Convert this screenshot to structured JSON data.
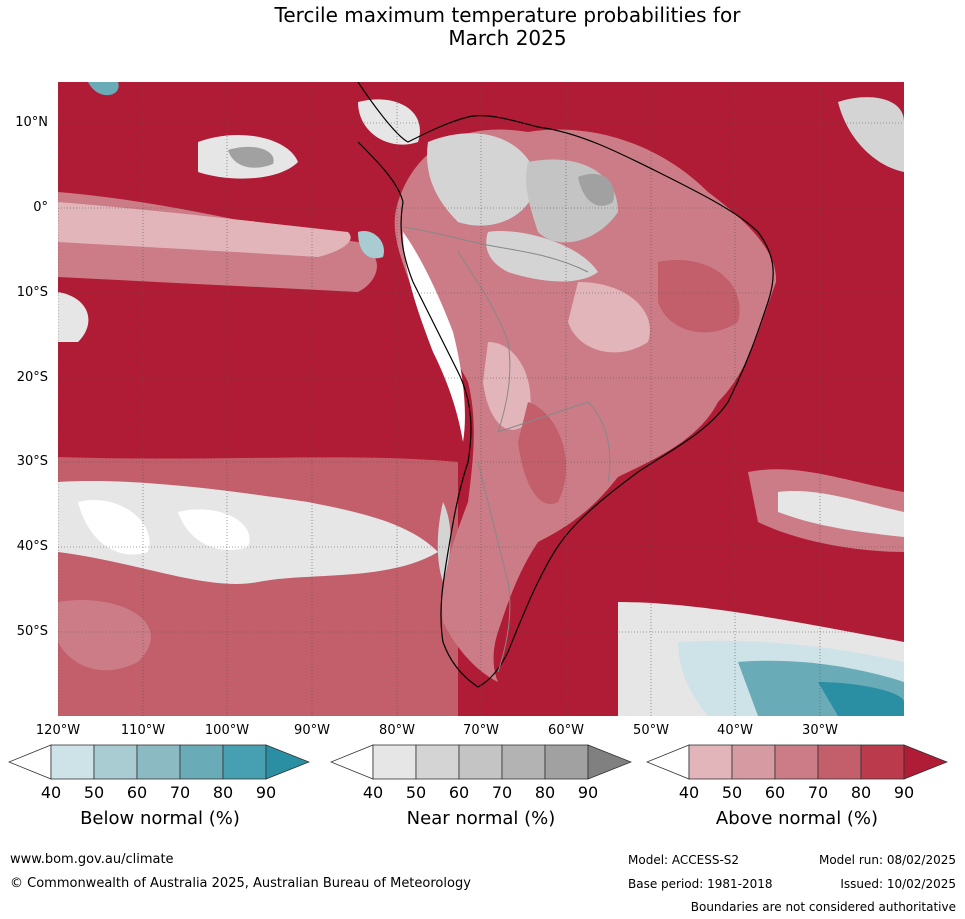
{
  "title": "Tercile maximum temperature probabilities for",
  "subtitle": "March 2025",
  "lat_labels": [
    "10°N",
    "0°",
    "10°S",
    "20°S",
    "30°S",
    "40°S",
    "50°S"
  ],
  "lon_labels": [
    "120°W",
    "110°W",
    "100°W",
    "90°W",
    "80°W",
    "70°W",
    "60°W",
    "50°W",
    "40°W",
    "30°W"
  ],
  "colorbars": [
    {
      "title": "Below normal (%)",
      "ticks": [
        "40",
        "50",
        "60",
        "70",
        "80",
        "90"
      ],
      "colors": [
        "#cde3e8",
        "#a9cbd2",
        "#8bbac3",
        "#6aabb8",
        "#47a0b1",
        "#2a8fa3"
      ]
    },
    {
      "title": "Near normal (%)",
      "ticks": [
        "40",
        "50",
        "60",
        "70",
        "80",
        "90"
      ],
      "colors": [
        "#e6e6e6",
        "#d4d4d4",
        "#c4c4c4",
        "#b3b3b3",
        "#a1a1a1",
        "#808080"
      ]
    },
    {
      "title": "Above normal (%)",
      "ticks": [
        "40",
        "50",
        "60",
        "70",
        "80",
        "90"
      ],
      "colors": [
        "#e2b5bb",
        "#d69aa2",
        "#cc7c86",
        "#c35e6b",
        "#bb3a4c",
        "#b01c35"
      ]
    }
  ],
  "footer": {
    "website": "www.bom.gov.au/climate",
    "copyright": "© Commonwealth of Australia 2025, Australian Bureau of Meteorology",
    "model": "Model: ACCESS-S2",
    "base_period": "Base period: 1981-2018",
    "model_run": "Model run: 08/02/2025",
    "issued": "Issued: 10/02/2025",
    "disclaimer": "Boundaries are not considered authoritative"
  }
}
